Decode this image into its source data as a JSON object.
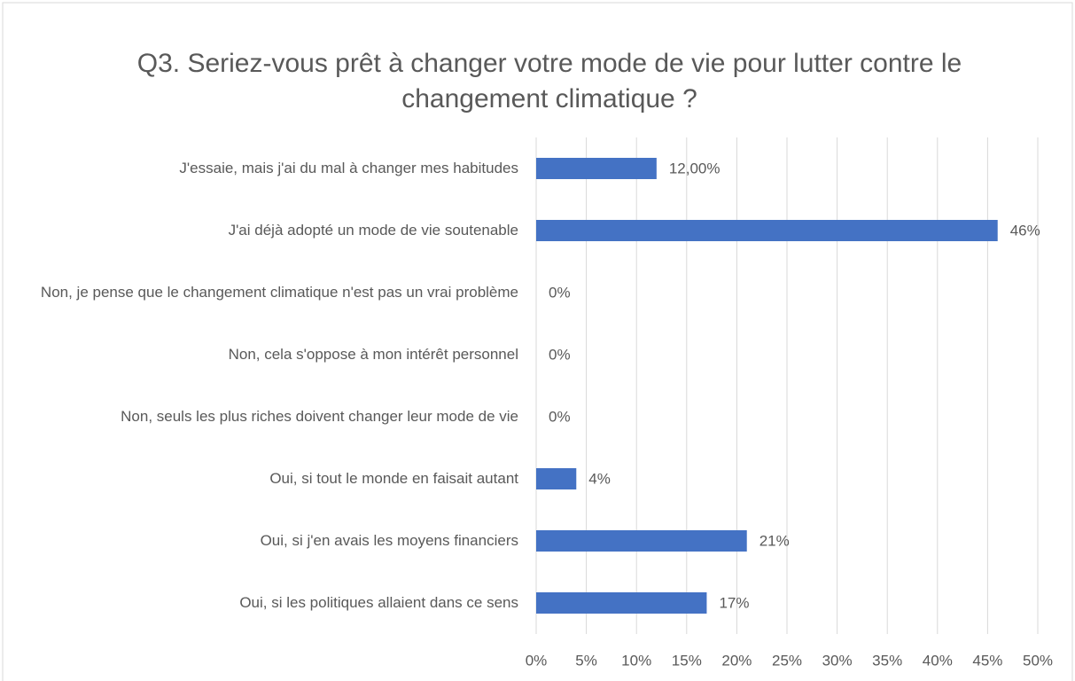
{
  "chart_data": {
    "type": "bar",
    "orientation": "horizontal",
    "title": "Q3. Seriez-vous prêt à changer votre mode de vie pour lutter contre le changement climatique ?",
    "categories": [
      "J'essaie, mais j'ai du mal à changer mes habitudes",
      "J'ai déjà adopté un mode de vie soutenable",
      "Non, je pense que le changement climatique n'est pas un vrai problème",
      "Non, cela s'oppose à mon intérêt personnel",
      "Non, seuls les plus riches doivent changer leur mode de vie",
      "Oui, si tout le monde en faisait autant",
      "Oui, si j'en avais les moyens financiers",
      "Oui, si les politiques allaient dans ce sens"
    ],
    "values": [
      12,
      46,
      0,
      0,
      0,
      4,
      21,
      17
    ],
    "value_labels": [
      "12,00%",
      "46%",
      "0%",
      "0%",
      "0%",
      "4%",
      "21%",
      "17%"
    ],
    "color": "#4472c4",
    "xlim": [
      0,
      50
    ],
    "xticks": [
      {
        "value": 0,
        "label": "0%"
      },
      {
        "value": 5,
        "label": "5%"
      },
      {
        "value": 10,
        "label": "10%"
      },
      {
        "value": 15,
        "label": "15%"
      },
      {
        "value": 20,
        "label": "20%"
      },
      {
        "value": 25,
        "label": "25%"
      },
      {
        "value": 30,
        "label": "30%"
      },
      {
        "value": 35,
        "label": "35%"
      },
      {
        "value": 40,
        "label": "40%"
      },
      {
        "value": 45,
        "label": "45%"
      },
      {
        "value": 50,
        "label": "50%"
      }
    ],
    "grid": true
  }
}
